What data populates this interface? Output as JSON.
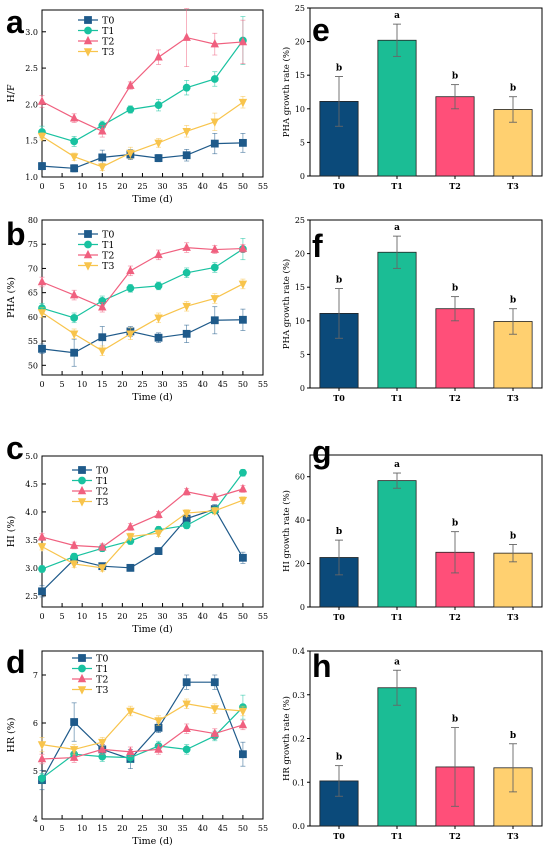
{
  "figure": {
    "line_series_colors": [
      "#1f5a8a",
      "#19c2a0",
      "#f0607f",
      "#f8c44c"
    ],
    "bar_colors": [
      "#0b4a7a",
      "#1bbd95",
      "#ff4f79",
      "#ffd070"
    ]
  },
  "chart_data": [
    {
      "id": "a",
      "panel_label": "a",
      "type": "line",
      "xlabel": "Time (d)",
      "ylabel": "H/F",
      "xlim": [
        0,
        55
      ],
      "ylim": [
        1.0,
        3.3
      ],
      "xticks": [
        0,
        5,
        10,
        15,
        20,
        25,
        30,
        35,
        40,
        45,
        50,
        55
      ],
      "yticks": [
        1.0,
        1.5,
        2.0,
        2.5,
        3.0
      ],
      "ytick_labels": [
        "1.0",
        "1.5",
        "2.0",
        "2.5",
        "3.0"
      ],
      "x": [
        0,
        8,
        15,
        22,
        29,
        36,
        43,
        50
      ],
      "series": [
        {
          "name": "T0",
          "marker": "square",
          "values": [
            1.15,
            1.12,
            1.27,
            1.31,
            1.26,
            1.3,
            1.46,
            1.47
          ],
          "errors": [
            0.05,
            0.05,
            0.1,
            0.07,
            0.05,
            0.08,
            0.14,
            0.13
          ]
        },
        {
          "name": "T1",
          "marker": "circle",
          "values": [
            1.62,
            1.49,
            1.71,
            1.93,
            1.99,
            2.23,
            2.35,
            2.88
          ],
          "errors": [
            0.08,
            0.07,
            0.06,
            0.05,
            0.08,
            0.1,
            0.1,
            0.33
          ]
        },
        {
          "name": "T2",
          "marker": "triangle-up",
          "values": [
            2.04,
            1.81,
            1.63,
            2.26,
            2.65,
            2.92,
            2.83,
            2.86
          ],
          "errors": [
            0.08,
            0.06,
            0.08,
            0.05,
            0.1,
            0.4,
            0.15,
            0.3
          ]
        },
        {
          "name": "T3",
          "marker": "triangle-down",
          "values": [
            1.56,
            1.28,
            1.14,
            1.33,
            1.47,
            1.63,
            1.76,
            2.03
          ],
          "errors": [
            0.05,
            0.05,
            0.05,
            0.08,
            0.06,
            0.08,
            0.12,
            0.08
          ]
        }
      ]
    },
    {
      "id": "e",
      "panel_label": "e",
      "type": "bar",
      "ylabel": "PHA growth rate (%)",
      "categories": [
        "T0",
        "T1",
        "T2",
        "T3"
      ],
      "values": [
        11.1,
        20.2,
        11.8,
        9.9
      ],
      "errors": [
        3.7,
        2.4,
        1.8,
        1.9
      ],
      "significance": [
        "b",
        "a",
        "b",
        "b"
      ],
      "ylim": [
        0,
        25
      ],
      "yticks": [
        0,
        5,
        10,
        15,
        20,
        25
      ],
      "ytick_labels": [
        "0",
        "5",
        "10",
        "15",
        "20",
        "25"
      ]
    },
    {
      "id": "b",
      "panel_label": "b",
      "type": "line",
      "xlabel": "Time (d)",
      "ylabel": "PHA (%)",
      "xlim": [
        0,
        55
      ],
      "ylim": [
        48,
        80
      ],
      "xticks": [
        0,
        5,
        10,
        15,
        20,
        25,
        30,
        35,
        40,
        45,
        50,
        55
      ],
      "yticks": [
        50,
        55,
        60,
        65,
        70,
        75,
        80
      ],
      "ytick_labels": [
        "50",
        "55",
        "60",
        "65",
        "70",
        "75",
        "80"
      ],
      "x": [
        0,
        8,
        15,
        22,
        29,
        36,
        43,
        50
      ],
      "series": [
        {
          "name": "T0",
          "marker": "square",
          "values": [
            53.4,
            52.6,
            55.8,
            57.0,
            55.7,
            56.5,
            59.3,
            59.4
          ],
          "errors": [
            1.0,
            2.8,
            2.2,
            1.0,
            1.0,
            1.8,
            2.8,
            2.2
          ]
        },
        {
          "name": "T1",
          "marker": "circle",
          "values": [
            61.8,
            59.8,
            63.3,
            65.9,
            66.4,
            69.1,
            70.2,
            74.0
          ],
          "errors": [
            1.0,
            1.0,
            1.0,
            0.8,
            0.8,
            1.0,
            1.0,
            2.2
          ]
        },
        {
          "name": "T2",
          "marker": "triangle-up",
          "values": [
            67.2,
            64.5,
            62.0,
            69.5,
            72.8,
            74.3,
            73.9,
            74.1
          ],
          "errors": [
            1.0,
            1.0,
            1.0,
            1.0,
            1.0,
            1.0,
            0.8,
            0.8
          ]
        },
        {
          "name": "T3",
          "marker": "triangle-down",
          "values": [
            60.9,
            56.5,
            53.0,
            56.5,
            59.8,
            62.2,
            63.8,
            66.8
          ],
          "errors": [
            1.0,
            1.0,
            1.0,
            1.2,
            1.0,
            1.0,
            1.0,
            1.0
          ]
        }
      ]
    },
    {
      "id": "f",
      "panel_label": "f",
      "type": "bar",
      "ylabel": "PHA growth rate (%)",
      "categories": [
        "T0",
        "T1",
        "T2",
        "T3"
      ],
      "values": [
        11.1,
        20.2,
        11.8,
        9.9
      ],
      "errors": [
        3.7,
        2.4,
        1.8,
        1.9
      ],
      "significance": [
        "b",
        "a",
        "b",
        "b"
      ],
      "ylim": [
        0,
        25
      ],
      "yticks": [
        0,
        5,
        10,
        15,
        20,
        25
      ],
      "ytick_labels": [
        "0",
        "5",
        "10",
        "15",
        "20",
        "25"
      ]
    },
    {
      "id": "c",
      "panel_label": "c",
      "type": "line",
      "xlabel": "Time (d)",
      "ylabel": "HI (%)",
      "xlim": [
        0,
        55
      ],
      "ylim": [
        2.3,
        5.0
      ],
      "xticks": [
        0,
        5,
        10,
        15,
        20,
        25,
        30,
        35,
        40,
        45,
        50,
        55
      ],
      "yticks": [
        2.5,
        3.0,
        3.5,
        4.0,
        4.5,
        5.0
      ],
      "ytick_labels": [
        "2.5",
        "3.0",
        "3.5",
        "4.0",
        "4.5",
        "5.0"
      ],
      "x": [
        0,
        8,
        15,
        22,
        29,
        36,
        43,
        50
      ],
      "series": [
        {
          "name": "T0",
          "marker": "square",
          "values": [
            2.58,
            3.15,
            3.03,
            3.0,
            3.3,
            3.88,
            4.05,
            3.18
          ],
          "errors": [
            0.1,
            0.08,
            0.06,
            0.06,
            0.06,
            0.1,
            0.08,
            0.1
          ]
        },
        {
          "name": "T1",
          "marker": "circle",
          "values": [
            2.98,
            3.2,
            3.35,
            3.48,
            3.68,
            3.76,
            4.03,
            4.7
          ],
          "errors": [
            0.06,
            0.06,
            0.06,
            0.06,
            0.06,
            0.06,
            0.06,
            0.06
          ]
        },
        {
          "name": "T2",
          "marker": "triangle-up",
          "values": [
            3.55,
            3.4,
            3.37,
            3.73,
            3.95,
            4.36,
            4.26,
            4.41
          ],
          "errors": [
            0.06,
            0.06,
            0.06,
            0.06,
            0.06,
            0.06,
            0.06,
            0.06
          ]
        },
        {
          "name": "T3",
          "marker": "triangle-down",
          "values": [
            3.38,
            3.07,
            3.0,
            3.56,
            3.62,
            3.98,
            4.02,
            4.21
          ],
          "errors": [
            0.06,
            0.06,
            0.06,
            0.06,
            0.06,
            0.06,
            0.06,
            0.06
          ]
        }
      ]
    },
    {
      "id": "g",
      "panel_label": "g",
      "type": "bar",
      "ylabel": "HI growth rate (%)",
      "categories": [
        "T0",
        "T1",
        "T2",
        "T3"
      ],
      "values": [
        22.8,
        58.2,
        25.2,
        24.8
      ],
      "errors": [
        8.0,
        3.5,
        9.5,
        4.0
      ],
      "significance": [
        "b",
        "a",
        "b",
        "b"
      ],
      "ylim": [
        0,
        70
      ],
      "yticks": [
        0,
        20,
        40,
        60
      ],
      "ytick_labels": [
        "0",
        "20",
        "40",
        "60"
      ]
    },
    {
      "id": "d",
      "panel_label": "d",
      "type": "line",
      "xlabel": "Time (d)",
      "ylabel": "HR (%)",
      "xlim": [
        0,
        55
      ],
      "ylim": [
        4.0,
        7.5
      ],
      "xticks": [
        0,
        5,
        10,
        15,
        20,
        25,
        30,
        35,
        40,
        45,
        50,
        55
      ],
      "yticks": [
        4,
        5,
        6,
        7
      ],
      "ytick_labels": [
        "4",
        "5",
        "6",
        "7"
      ],
      "x": [
        0,
        8,
        15,
        22,
        29,
        36,
        43,
        50
      ],
      "series": [
        {
          "name": "T0",
          "marker": "square",
          "values": [
            4.81,
            6.02,
            5.45,
            5.25,
            5.9,
            6.85,
            6.85,
            5.35
          ],
          "errors": [
            0.2,
            0.4,
            0.1,
            0.2,
            0.1,
            0.15,
            0.15,
            0.25
          ]
        },
        {
          "name": "T1",
          "marker": "circle",
          "values": [
            4.85,
            5.35,
            5.3,
            5.28,
            5.52,
            5.45,
            5.73,
            6.33
          ],
          "errors": [
            0.1,
            0.1,
            0.1,
            0.1,
            0.1,
            0.1,
            0.1,
            0.25
          ]
        },
        {
          "name": "T2",
          "marker": "triangle-up",
          "values": [
            5.25,
            5.28,
            5.45,
            5.4,
            5.45,
            5.88,
            5.78,
            5.96
          ],
          "errors": [
            0.1,
            0.1,
            0.1,
            0.1,
            0.1,
            0.1,
            0.1,
            0.1
          ]
        },
        {
          "name": "T3",
          "marker": "triangle-down",
          "values": [
            5.55,
            5.45,
            5.6,
            6.25,
            6.05,
            6.4,
            6.3,
            6.25
          ],
          "errors": [
            0.15,
            0.1,
            0.1,
            0.1,
            0.1,
            0.1,
            0.1,
            0.1
          ]
        }
      ]
    },
    {
      "id": "h",
      "panel_label": "h",
      "type": "bar",
      "ylabel": "HR growth rate (%)",
      "categories": [
        "T0",
        "T1",
        "T2",
        "T3"
      ],
      "values": [
        0.103,
        0.316,
        0.135,
        0.133
      ],
      "errors": [
        0.035,
        0.04,
        0.09,
        0.055
      ],
      "significance": [
        "b",
        "a",
        "b",
        "b"
      ],
      "ylim": [
        0,
        0.4
      ],
      "yticks": [
        0.0,
        0.1,
        0.2,
        0.3,
        0.4
      ],
      "ytick_labels": [
        "0.0",
        "0.1",
        "0.2",
        "0.3",
        "0.4"
      ]
    }
  ]
}
